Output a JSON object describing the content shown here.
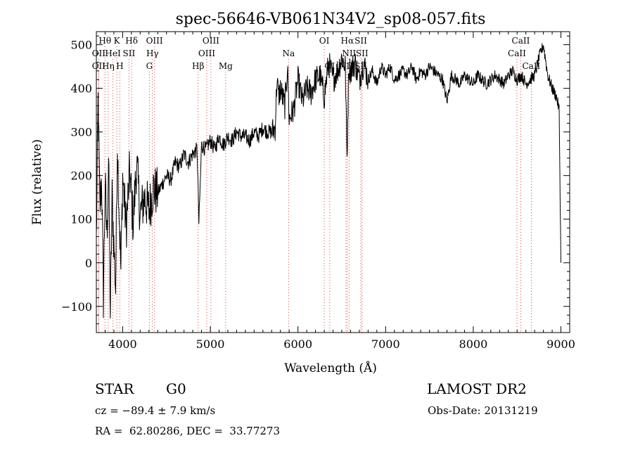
{
  "chart_data": {
    "type": "line",
    "title": "spec-56646-VB061N34V2_sp08-057.fits",
    "xlabel": "Wavelength (Å)",
    "ylabel": "Flux (relative)",
    "xlim": [
      3700,
      9100
    ],
    "ylim": [
      -160,
      530
    ],
    "xticks": [
      4000,
      5000,
      6000,
      7000,
      8000,
      9000
    ],
    "yticks": [
      -100,
      0,
      100,
      200,
      300,
      400,
      500
    ],
    "tick_labels_x": [
      "4000",
      "5000",
      "6000",
      "7000",
      "8000",
      "9000"
    ],
    "tick_labels_y": [
      "−100",
      "0",
      "100",
      "200",
      "300",
      "400",
      "500"
    ],
    "grid": false,
    "line_color": "#000000",
    "marker_color": "#d94040",
    "series": [
      {
        "x": [
          3700,
          3720,
          3740,
          3760,
          3780,
          3800,
          3820,
          3840,
          3860,
          3880,
          3900,
          3920,
          3940,
          3960,
          3980,
          4000,
          4040,
          4080,
          4120,
          4160,
          4200,
          4250,
          4300,
          4350,
          4400,
          4450,
          4500,
          4550,
          4600,
          4650,
          4700,
          4750,
          4800,
          4850,
          4870,
          4900,
          4950,
          5000,
          5050,
          5100,
          5150,
          5200,
          5250,
          5300,
          5350,
          5400,
          5450,
          5500,
          5550,
          5600,
          5650,
          5700,
          5740,
          5760,
          5780,
          5800,
          5850,
          5880,
          5900,
          5950,
          6000,
          6050,
          6100,
          6150,
          6200,
          6250,
          6300,
          6350,
          6400,
          6450,
          6500,
          6540,
          6560,
          6580,
          6600,
          6650,
          6700,
          6750,
          6800,
          6850,
          6900,
          6950,
          7000,
          7050,
          7100,
          7150,
          7200,
          7250,
          7300,
          7350,
          7400,
          7450,
          7500,
          7550,
          7600,
          7650,
          7700,
          7750,
          7800,
          7850,
          7900,
          7950,
          8000,
          8050,
          8100,
          8150,
          8200,
          8250,
          8300,
          8350,
          8400,
          8450,
          8500,
          8550,
          8600,
          8650,
          8700,
          8750,
          8800,
          8850,
          8900,
          8950,
          8980,
          9000
        ],
        "y": [
          50,
          370,
          120,
          200,
          -80,
          180,
          60,
          240,
          -120,
          150,
          40,
          -60,
          280,
          120,
          -20,
          200,
          80,
          210,
          90,
          230,
          110,
          150,
          120,
          170,
          160,
          180,
          200,
          190,
          230,
          220,
          250,
          230,
          250,
          260,
          90,
          270,
          260,
          280,
          260,
          290,
          270,
          290,
          280,
          300,
          290,
          290,
          280,
          300,
          290,
          310,
          300,
          300,
          310,
          420,
          380,
          400,
          360,
          450,
          330,
          350,
          420,
          370,
          400,
          390,
          420,
          430,
          380,
          460,
          420,
          440,
          470,
          450,
          240,
          450,
          440,
          460,
          420,
          460,
          420,
          440,
          410,
          450,
          430,
          450,
          420,
          430,
          440,
          430,
          450,
          420,
          440,
          430,
          450,
          440,
          430,
          420,
          370,
          430,
          420,
          410,
          430,
          420,
          410,
          430,
          420,
          410,
          420,
          430,
          420,
          410,
          430,
          440,
          420,
          430,
          410,
          420,
          430,
          470,
          500,
          430,
          400,
          380,
          350,
          0
        ]
      }
    ],
    "line_markers": [
      {
        "label": "Hθ",
        "x": 3798,
        "row": 0
      },
      {
        "label": "K",
        "x": 3934,
        "row": 0
      },
      {
        "label": "Hδ",
        "x": 4102,
        "row": 0
      },
      {
        "label": "OIII",
        "x": 4363,
        "row": 0
      },
      {
        "label": "OIII",
        "x": 5007,
        "row": 0
      },
      {
        "label": "OI",
        "x": 6300,
        "row": 0
      },
      {
        "label": "Hα",
        "x": 6563,
        "row": 0
      },
      {
        "label": "SII",
        "x": 6717,
        "row": 0
      },
      {
        "label": "CaII",
        "x": 8542,
        "row": 0
      },
      {
        "label": "OII",
        "x": 3727,
        "row": 1
      },
      {
        "label": "HeI",
        "x": 3889,
        "row": 1
      },
      {
        "label": "SII",
        "x": 4072,
        "row": 1
      },
      {
        "label": "Hγ",
        "x": 4340,
        "row": 1
      },
      {
        "label": "OIII",
        "x": 4959,
        "row": 1
      },
      {
        "label": "Na",
        "x": 5893,
        "row": 1
      },
      {
        "label": "NII",
        "x": 6583,
        "row": 1
      },
      {
        "label": "SII",
        "x": 6731,
        "row": 1
      },
      {
        "label": "CaII",
        "x": 8498,
        "row": 1
      },
      {
        "label": "OII",
        "x": 3727,
        "row": 2
      },
      {
        "label": "Hη",
        "x": 3835,
        "row": 2
      },
      {
        "label": "H",
        "x": 3968,
        "row": 2
      },
      {
        "label": "G",
        "x": 4305,
        "row": 2
      },
      {
        "label": "Hβ",
        "x": 4861,
        "row": 2
      },
      {
        "label": "Mg",
        "x": 5175,
        "row": 2
      },
      {
        "label": "OI",
        "x": 6363,
        "row": 2
      },
      {
        "label": "NII",
        "x": 6548,
        "row": 2
      },
      {
        "label": "SII",
        "x": 6717,
        "row": 2
      },
      {
        "label": "CaII",
        "x": 8662,
        "row": 2
      }
    ]
  },
  "info": {
    "class": "STAR",
    "subclass": "G0",
    "survey": "LAMOST DR2",
    "cz": "cz = −89.4 ± 7.9 km/s",
    "obs_date": "Obs-Date: 20131219",
    "coords": "RA =  62.80286, DEC =  33.77273"
  }
}
